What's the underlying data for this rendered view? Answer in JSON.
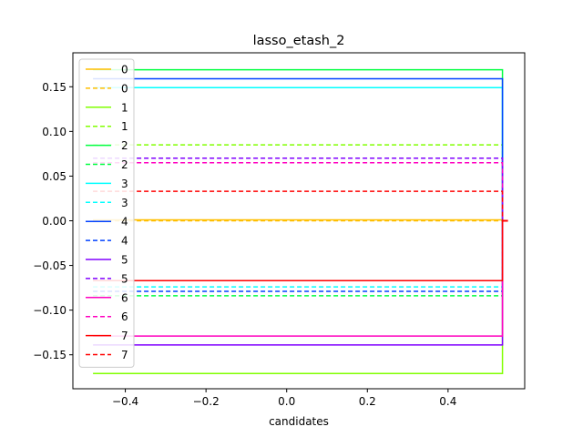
{
  "chart_data": {
    "type": "line",
    "title": "lasso_etash_2",
    "xlabel": "candidates",
    "ylabel": "",
    "xlim": [
      -0.53,
      0.59
    ],
    "ylim": [
      -0.188,
      0.188
    ],
    "xticks": [
      -0.4,
      -0.2,
      0.0,
      0.2,
      0.4
    ],
    "xtick_labels": [
      "−0.4",
      "−0.2",
      "0.0",
      "0.2",
      "0.4"
    ],
    "yticks": [
      -0.15,
      -0.1,
      -0.05,
      0.0,
      0.05,
      0.1,
      0.15
    ],
    "ytick_labels": [
      "−0.15",
      "−0.10",
      "−0.05",
      "0.00",
      "0.05",
      "0.10",
      "0.15"
    ],
    "grid": false,
    "legend_position": "upper-left",
    "x_left": -0.48,
    "x_right": 0.535,
    "series": [
      {
        "name": "0",
        "color": "#ffbf00",
        "dash": false,
        "value": 0.001,
        "final": 0.0
      },
      {
        "name": "0",
        "color": "#ffbf00",
        "dash": true,
        "value": 0.0,
        "final": 0.0
      },
      {
        "name": "1",
        "color": "#80ff00",
        "dash": false,
        "value": -0.171,
        "final": 0.0
      },
      {
        "name": "1",
        "color": "#80ff00",
        "dash": true,
        "value": 0.085,
        "final": 0.0
      },
      {
        "name": "2",
        "color": "#00ff40",
        "dash": false,
        "value": 0.169,
        "final": 0.0
      },
      {
        "name": "2",
        "color": "#00ff40",
        "dash": true,
        "value": -0.084,
        "final": 0.0
      },
      {
        "name": "3",
        "color": "#00ffff",
        "dash": false,
        "value": 0.149,
        "final": 0.0
      },
      {
        "name": "3",
        "color": "#00ffff",
        "dash": true,
        "value": -0.074,
        "final": 0.0
      },
      {
        "name": "4",
        "color": "#0040ff",
        "dash": false,
        "value": 0.159,
        "final": 0.0
      },
      {
        "name": "4",
        "color": "#0040ff",
        "dash": true,
        "value": -0.079,
        "final": 0.0
      },
      {
        "name": "5",
        "color": "#8000ff",
        "dash": false,
        "value": -0.139,
        "final": 0.0
      },
      {
        "name": "5",
        "color": "#8000ff",
        "dash": true,
        "value": 0.07,
        "final": 0.0
      },
      {
        "name": "6",
        "color": "#ff00bf",
        "dash": false,
        "value": -0.129,
        "final": 0.0
      },
      {
        "name": "6",
        "color": "#ff00bf",
        "dash": true,
        "value": 0.065,
        "final": 0.0
      },
      {
        "name": "7",
        "color": "#ff0000",
        "dash": false,
        "value": -0.067,
        "final": 0.0
      },
      {
        "name": "7",
        "color": "#ff0000",
        "dash": true,
        "value": 0.033,
        "final": 0.0
      }
    ]
  }
}
